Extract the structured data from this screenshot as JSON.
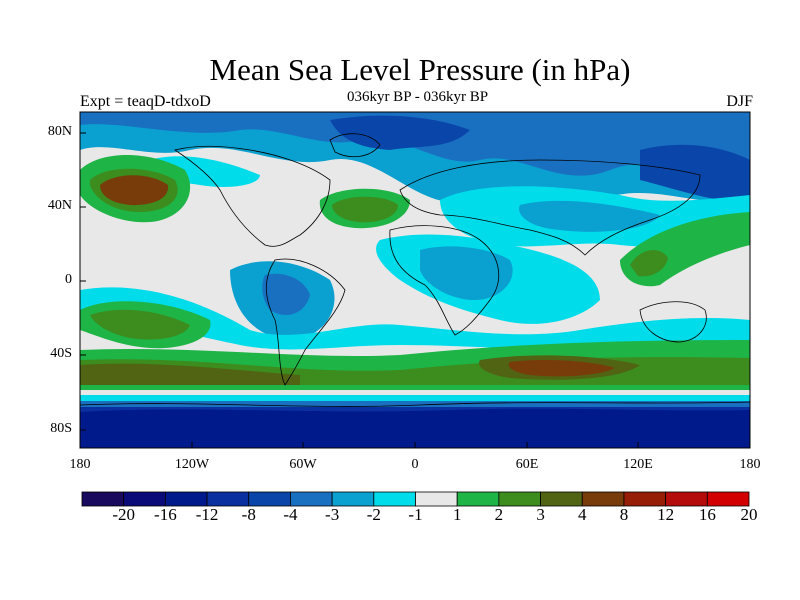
{
  "title": "Mean Sea Level Pressure (in hPa)",
  "subtitle": "036kyr BP - 036kyr BP",
  "left_label": "Expt = teaqD-tdxoD",
  "right_label": "DJF",
  "axes": {
    "y_ticks": [
      "80N",
      "40N",
      "0",
      "40S",
      "80S"
    ],
    "x_ticks": [
      "180",
      "120W",
      "60W",
      "0",
      "60E",
      "120E",
      "180"
    ]
  },
  "colorbar": {
    "labels": [
      "-20",
      "-16",
      "-12",
      "-8",
      "-4",
      "-3",
      "-2",
      "-1",
      "1",
      "2",
      "3",
      "4",
      "8",
      "12",
      "16",
      "20"
    ],
    "colors": [
      "#1a0a5e",
      "#0a0a78",
      "#001a8c",
      "#0a30a0",
      "#0a46aa",
      "#1a70c0",
      "#0aa0d0",
      "#00dcea",
      "#e8e8e8",
      "#1eb446",
      "#3c8c1e",
      "#506414",
      "#783c0a",
      "#961e06",
      "#b40c0a",
      "#d20000"
    ]
  },
  "palette": {
    "ocean_deep": "#0a30a0",
    "ocean_mid": "#1a70c0",
    "light_blue": "#0aa0d0",
    "cyan": "#00dcea",
    "neutral": "#e8e8e8",
    "green": "#1eb446",
    "dark_green": "#3c8c1e",
    "olive": "#506414",
    "brown": "#783c0a"
  }
}
